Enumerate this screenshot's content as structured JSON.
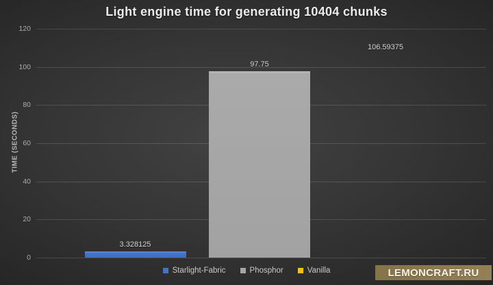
{
  "chart_data": {
    "type": "bar",
    "title": "Light engine time for generating 10404 chunks",
    "categories": [
      "Starlight-Fabric",
      "Phosphor",
      "Vanilla"
    ],
    "values": [
      3.328125,
      97.75,
      106.59375
    ],
    "value_labels": [
      "3.328125",
      "97.75",
      "106.59375"
    ],
    "colors": [
      "#4472c4",
      "#a6a6a6",
      "#ffc000"
    ],
    "xlabel": "",
    "ylabel": "TIME (SECONDS)",
    "ylim": [
      0,
      120
    ],
    "yticks": [
      0,
      20,
      40,
      60,
      80,
      100,
      120
    ],
    "grid": true,
    "legend_position": "bottom"
  },
  "legend": {
    "items": [
      {
        "label": "Starlight-Fabric",
        "color": "#4472c4"
      },
      {
        "label": "Phosphor",
        "color": "#a6a6a6"
      },
      {
        "label": "Vanilla",
        "color": "#ffc000"
      }
    ]
  },
  "watermark": {
    "text": "LEMONCRAFT.RU",
    "background_color": "#8c7a50",
    "text_color": "#f7f3e8"
  },
  "background": {
    "style": "dark-radial-gradient",
    "center_color": "#424242",
    "edge_color": "#1a1a1a"
  }
}
